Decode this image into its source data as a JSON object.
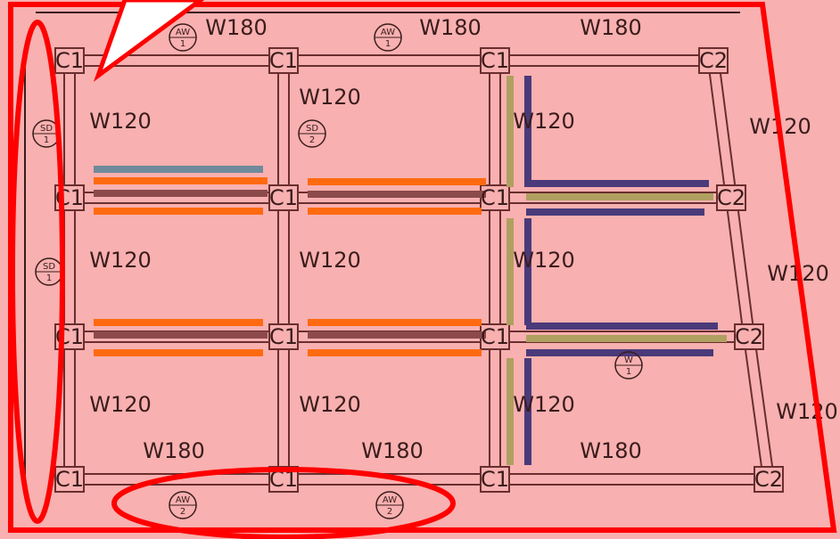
{
  "columns": [
    "C1",
    "C1",
    "C1",
    "C2",
    "C1",
    "C1",
    "C1",
    "C2",
    "C1",
    "C1",
    "C1",
    "C2",
    "C1",
    "C1",
    "C1",
    "C2"
  ],
  "walls": [
    "W180",
    "W180",
    "W180",
    "W120",
    "W120",
    "W120",
    "W120",
    "W120",
    "W120",
    "W120",
    "W120",
    "W120",
    "W120",
    "W120",
    "W120",
    "W180",
    "W180",
    "W180"
  ],
  "markers": [
    {
      "top": "AW",
      "bottom": "1"
    },
    {
      "top": "AW",
      "bottom": "1"
    },
    {
      "top": "SD",
      "bottom": "1"
    },
    {
      "top": "SD",
      "bottom": "2"
    },
    {
      "top": "SD",
      "bottom": "1"
    },
    {
      "top": "W",
      "bottom": "1"
    },
    {
      "top": "AW",
      "bottom": "2"
    },
    {
      "top": "AW",
      "bottom": "2"
    }
  ]
}
